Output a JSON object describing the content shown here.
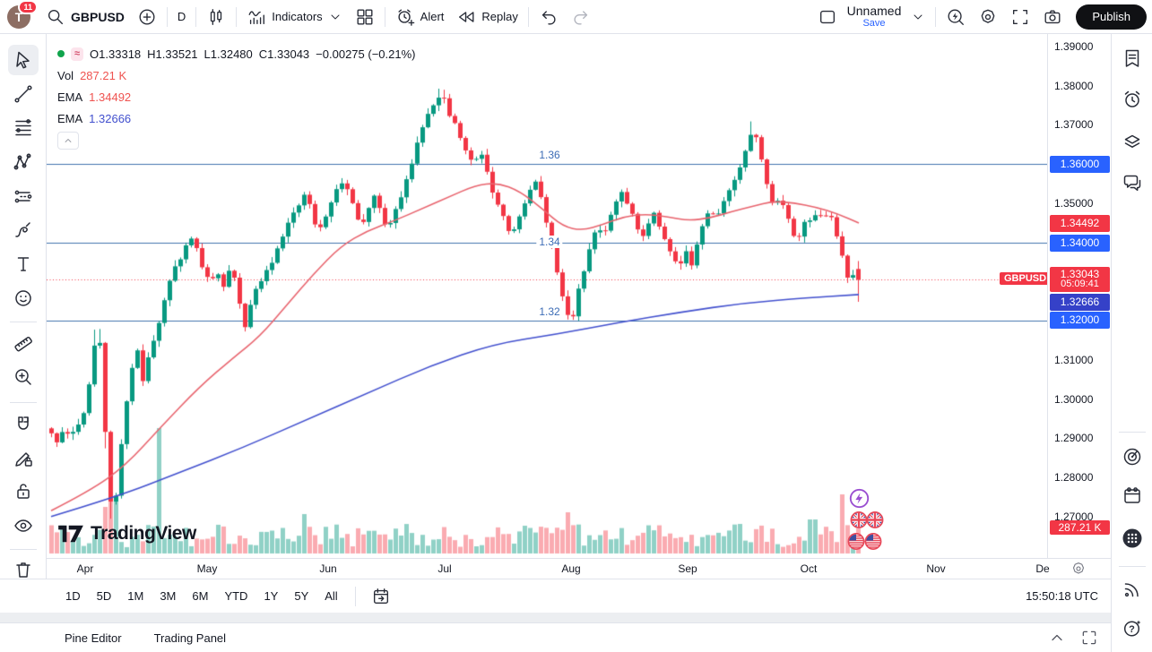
{
  "topbar": {
    "avatar_initial": "T",
    "notification_count": "11",
    "symbol": "GBPUSD",
    "interval": "D",
    "indicators_label": "Indicators",
    "alert_label": "Alert",
    "replay_label": "Replay",
    "layout_name": "Unnamed",
    "save_label": "Save",
    "publish_label": "Publish"
  },
  "legend": {
    "ohlc_tokens": [
      "O1.33318",
      "H1.33521",
      "L1.32480",
      "C1.33043",
      "−0.00275 (−0.21%)"
    ],
    "approx_badge": "≈",
    "vol_label": "Vol",
    "vol_value": "287.21 K",
    "ema_fast_label": "EMA",
    "ema_fast_value": "1.34492",
    "ema_slow_label": "EMA",
    "ema_slow_value": "1.32666"
  },
  "left_toolbar": {
    "tools": [
      "cursor",
      "trend-line",
      "fib-retracement",
      "xabcd-pattern",
      "projection",
      "brush",
      "text",
      "emoji",
      "ruler",
      "zoom-in",
      "magnet",
      "drawing-mode",
      "lock-drawings",
      "hide-drawings",
      "remove-drawings"
    ]
  },
  "right_rail": {
    "top_icons": [
      "watchlist",
      "alerts-clock",
      "object-tree",
      "chats"
    ],
    "bottom_icons": [
      "radar",
      "calendar",
      "apps-grid",
      "streams",
      "help"
    ]
  },
  "watermark": {
    "text": "TradingView"
  },
  "bottom_toolbar": {
    "ranges": [
      "1D",
      "5D",
      "1M",
      "3M",
      "6M",
      "YTD",
      "1Y",
      "5Y",
      "All"
    ],
    "clock": "15:50:18 UTC"
  },
  "status_bar": {
    "tabs": [
      "Pine Editor",
      "Trading Panel"
    ]
  },
  "chart_data": {
    "type": "candlestick",
    "symbol": "GBPUSD",
    "interval": "D",
    "title": "GBPUSD daily with volume, EMA(fast) 1.34492, EMA(slow) 1.32666",
    "last": {
      "open": 1.33318,
      "high": 1.33521,
      "low": 1.3248,
      "close": 1.33043,
      "change": "−0.00275 (−0.21%)",
      "countdown": "05:09:41",
      "tag_label": "GBPUSD"
    },
    "volume_display": "287.21 K",
    "map": {
      "price": 1.36,
      "y": 183,
      "scale": 4375,
      "pane_top": 38,
      "pane_left": 52
    },
    "x_start": 57,
    "x_step": 6,
    "count": 151,
    "y_range": [
      1.2625,
      1.3925
    ],
    "levels": [
      {
        "label": "1.36",
        "price": 1.36,
        "pos": "above"
      },
      {
        "label": "1.34",
        "price": 1.34,
        "pos": "online"
      },
      {
        "label": "1.32",
        "price": 1.32,
        "pos": "above"
      }
    ],
    "level_label_x": 561,
    "y_ticks": [
      {
        "label": "1.39000",
        "price": 1.39
      },
      {
        "label": "1.38000",
        "price": 1.38
      },
      {
        "label": "1.37000",
        "price": 1.37
      },
      {
        "label": "1.35000",
        "price": 1.35
      },
      {
        "label": "1.31000",
        "price": 1.31
      },
      {
        "label": "1.30000",
        "price": 1.3
      },
      {
        "label": "1.29000",
        "price": 1.29
      },
      {
        "label": "1.28000",
        "price": 1.28
      },
      {
        "label": "1.27000",
        "price": 1.27
      }
    ],
    "axis_badges": [
      {
        "text": "1.36000",
        "color": "#2962ff",
        "top": 136
      },
      {
        "text": "1.34492",
        "color": "#f23645",
        "top": 202
      },
      {
        "text": "1.34000",
        "color": "#2962ff",
        "top": 224
      },
      {
        "text": "1.33043",
        "sub": "05:09:41",
        "color": "#f23645",
        "top": 260,
        "h": 28
      },
      {
        "text": "1.32666",
        "color": "#3541c8",
        "top": 290
      },
      {
        "text": "1.32000",
        "color": "#2962ff",
        "top": 310
      },
      {
        "text": "287.21 K",
        "color": "#f23645",
        "top": 543,
        "h": 16
      }
    ],
    "x_axis": {
      "months": [
        [
          "Apr",
          43
        ],
        [
          "May",
          179
        ],
        [
          "Jun",
          314
        ],
        [
          "Jul",
          444
        ],
        [
          "Aug",
          585
        ],
        [
          "Sep",
          715
        ],
        [
          "Oct",
          850
        ],
        [
          "Nov",
          992
        ],
        [
          "De",
          1111
        ]
      ]
    },
    "price_anchors": [
      [
        57,
        1.2915
      ],
      [
        64,
        1.289
      ],
      [
        71,
        1.2925
      ],
      [
        78,
        1.2905
      ],
      [
        85,
        1.293
      ],
      [
        92,
        1.2955
      ],
      [
        99,
        1.304
      ],
      [
        105,
        1.3135
      ],
      [
        110,
        1.318
      ],
      [
        114,
        1.304
      ],
      [
        118,
        1.288
      ],
      [
        122,
        1.2725
      ],
      [
        126,
        1.2795
      ],
      [
        130,
        1.2745
      ],
      [
        135,
        1.289
      ],
      [
        141,
        1.2995
      ],
      [
        147,
        1.3085
      ],
      [
        153,
        1.3125
      ],
      [
        159,
        1.3045
      ],
      [
        165,
        1.3105
      ],
      [
        172,
        1.316
      ],
      [
        179,
        1.3215
      ],
      [
        186,
        1.328
      ],
      [
        194,
        1.333
      ],
      [
        202,
        1.336
      ],
      [
        210,
        1.342
      ],
      [
        217,
        1.3395
      ],
      [
        225,
        1.334
      ],
      [
        233,
        1.33
      ],
      [
        241,
        1.3325
      ],
      [
        249,
        1.329
      ],
      [
        257,
        1.334
      ],
      [
        264,
        1.3295
      ],
      [
        271,
        1.317
      ],
      [
        278,
        1.3235
      ],
      [
        286,
        1.329
      ],
      [
        294,
        1.3315
      ],
      [
        301,
        1.334
      ],
      [
        309,
        1.3385
      ],
      [
        317,
        1.343
      ],
      [
        325,
        1.347
      ],
      [
        333,
        1.35
      ],
      [
        340,
        1.353
      ],
      [
        347,
        1.348
      ],
      [
        354,
        1.342
      ],
      [
        361,
        1.3455
      ],
      [
        368,
        1.35
      ],
      [
        375,
        1.353
      ],
      [
        382,
        1.356
      ],
      [
        389,
        1.353
      ],
      [
        396,
        1.348
      ],
      [
        403,
        1.344
      ],
      [
        410,
        1.348
      ],
      [
        417,
        1.352
      ],
      [
        424,
        1.348
      ],
      [
        431,
        1.343
      ],
      [
        438,
        1.3465
      ],
      [
        445,
        1.3505
      ],
      [
        452,
        1.355
      ],
      [
        459,
        1.36
      ],
      [
        466,
        1.366
      ],
      [
        473,
        1.3705
      ],
      [
        480,
        1.3745
      ],
      [
        487,
        1.3765
      ],
      [
        493,
        1.3775
      ],
      [
        500,
        1.373
      ],
      [
        507,
        1.37
      ],
      [
        514,
        1.3655
      ],
      [
        521,
        1.362
      ],
      [
        528,
        1.36
      ],
      [
        535,
        1.363
      ],
      [
        542,
        1.359
      ],
      [
        549,
        1.353
      ],
      [
        556,
        1.349
      ],
      [
        563,
        1.345
      ],
      [
        570,
        1.341
      ],
      [
        577,
        1.345
      ],
      [
        584,
        1.35
      ],
      [
        591,
        1.353
      ],
      [
        598,
        1.356
      ],
      [
        605,
        1.349
      ],
      [
        612,
        1.343
      ],
      [
        619,
        1.335
      ],
      [
        626,
        1.327
      ],
      [
        633,
        1.322
      ],
      [
        638,
        1.32
      ],
      [
        645,
        1.328
      ],
      [
        652,
        1.334
      ],
      [
        659,
        1.34
      ],
      [
        666,
        1.344
      ],
      [
        673,
        1.342
      ],
      [
        680,
        1.346
      ],
      [
        687,
        1.351
      ],
      [
        694,
        1.353
      ],
      [
        701,
        1.349
      ],
      [
        708,
        1.345
      ],
      [
        715,
        1.341
      ],
      [
        722,
        1.344
      ],
      [
        729,
        1.347
      ],
      [
        736,
        1.343
      ],
      [
        743,
        1.34
      ],
      [
        750,
        1.336
      ],
      [
        757,
        1.334
      ],
      [
        764,
        1.338
      ],
      [
        771,
        1.334
      ],
      [
        778,
        1.34
      ],
      [
        785,
        1.345
      ],
      [
        792,
        1.349
      ],
      [
        799,
        1.346
      ],
      [
        806,
        1.35
      ],
      [
        813,
        1.353
      ],
      [
        820,
        1.356
      ],
      [
        827,
        1.36
      ],
      [
        834,
        1.365
      ],
      [
        840,
        1.369
      ],
      [
        846,
        1.364
      ],
      [
        852,
        1.358
      ],
      [
        858,
        1.352
      ],
      [
        864,
        1.349
      ],
      [
        870,
        1.352
      ],
      [
        876,
        1.348
      ],
      [
        882,
        1.344
      ],
      [
        888,
        1.34
      ],
      [
        894,
        1.344
      ],
      [
        900,
        1.347
      ],
      [
        906,
        1.345
      ],
      [
        912,
        1.348
      ],
      [
        918,
        1.346
      ],
      [
        924,
        1.348
      ],
      [
        930,
        1.344
      ],
      [
        936,
        1.34
      ],
      [
        942,
        1.334
      ],
      [
        948,
        1.329
      ],
      [
        953,
        1.333
      ],
      [
        957,
        1.3304
      ]
    ],
    "ema_fast": [
      [
        57,
        1.2715
      ],
      [
        100,
        1.2765
      ],
      [
        140,
        1.283
      ],
      [
        180,
        1.293
      ],
      [
        222,
        1.303
      ],
      [
        260,
        1.3105
      ],
      [
        290,
        1.316
      ],
      [
        320,
        1.324
      ],
      [
        350,
        1.332
      ],
      [
        380,
        1.339
      ],
      [
        410,
        1.343
      ],
      [
        440,
        1.3455
      ],
      [
        470,
        1.3485
      ],
      [
        500,
        1.3515
      ],
      [
        530,
        1.3545
      ],
      [
        555,
        1.3552
      ],
      [
        580,
        1.353
      ],
      [
        605,
        1.3485
      ],
      [
        628,
        1.344
      ],
      [
        650,
        1.343
      ],
      [
        672,
        1.3445
      ],
      [
        695,
        1.3465
      ],
      [
        720,
        1.3472
      ],
      [
        745,
        1.3465
      ],
      [
        768,
        1.3455
      ],
      [
        792,
        1.3462
      ],
      [
        816,
        1.3478
      ],
      [
        840,
        1.3492
      ],
      [
        862,
        1.3505
      ],
      [
        886,
        1.35
      ],
      [
        910,
        1.349
      ],
      [
        935,
        1.3472
      ],
      [
        958,
        1.34492
      ]
    ],
    "ema_slow": [
      [
        57,
        1.27
      ],
      [
        130,
        1.275
      ],
      [
        200,
        1.2812
      ],
      [
        270,
        1.2875
      ],
      [
        340,
        1.2945
      ],
      [
        410,
        1.3015
      ],
      [
        480,
        1.3085
      ],
      [
        550,
        1.314
      ],
      [
        620,
        1.3165
      ],
      [
        690,
        1.3195
      ],
      [
        760,
        1.3222
      ],
      [
        830,
        1.3245
      ],
      [
        900,
        1.3258
      ],
      [
        958,
        1.32666
      ]
    ],
    "volume_spikes": [
      [
        116,
        52
      ],
      [
        122,
        88
      ],
      [
        128,
        58
      ],
      [
        175,
        140
      ],
      [
        337,
        44
      ],
      [
        635,
        46
      ],
      [
        906,
        38
      ],
      [
        938,
        66
      ]
    ],
    "colors": {
      "up": "#089981",
      "down": "#f23645",
      "vol_up": "rgba(8,153,129,0.45)",
      "vol_down": "rgba(242,54,69,0.42)",
      "ema_fast": "#e8646e",
      "ema_slow": "#4250ce",
      "level": "#4273ae",
      "last_price": "#f23645",
      "accent_blue": "#2962ff"
    }
  }
}
